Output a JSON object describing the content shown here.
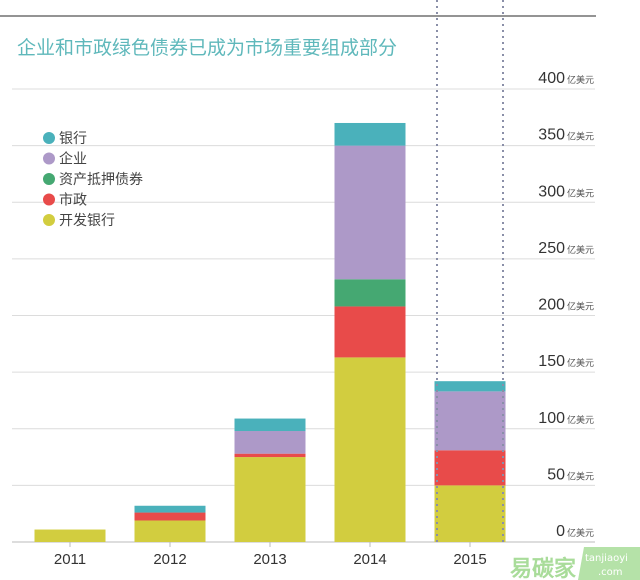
{
  "chart_data": {
    "type": "bar",
    "stacked": true,
    "title": "企业和市政绿色债券已成为市场重要组成部分",
    "categories": [
      "2011",
      "2012",
      "2013",
      "2014",
      "2015"
    ],
    "unit": "亿美元",
    "ylim": [
      0,
      400
    ],
    "yticks": [
      0,
      50,
      100,
      150,
      200,
      250,
      300,
      350,
      400
    ],
    "grid": true,
    "legend_position": "top-left",
    "series": [
      {
        "name": "开发银行",
        "color": "#d2cd3f",
        "values": [
          11,
          19,
          75,
          163,
          50
        ]
      },
      {
        "name": "市政",
        "color": "#e84b4a",
        "values": [
          0,
          7,
          3,
          45,
          31
        ]
      },
      {
        "name": "资产抵押债券",
        "color": "#45a872",
        "values": [
          0,
          0,
          0,
          24,
          0
        ]
      },
      {
        "name": "企业",
        "color": "#ad99c8",
        "values": [
          0,
          0,
          20,
          118,
          52
        ]
      },
      {
        "name": "银行",
        "color": "#4ab1bb",
        "values": [
          0,
          6,
          11,
          20,
          9
        ]
      }
    ],
    "legend_order": [
      "银行",
      "企业",
      "资产抵押债券",
      "市政",
      "开发银行"
    ]
  },
  "watermark": {
    "text": "易碳家",
    "site": "tanjiaoyi",
    "domain": ".com"
  }
}
